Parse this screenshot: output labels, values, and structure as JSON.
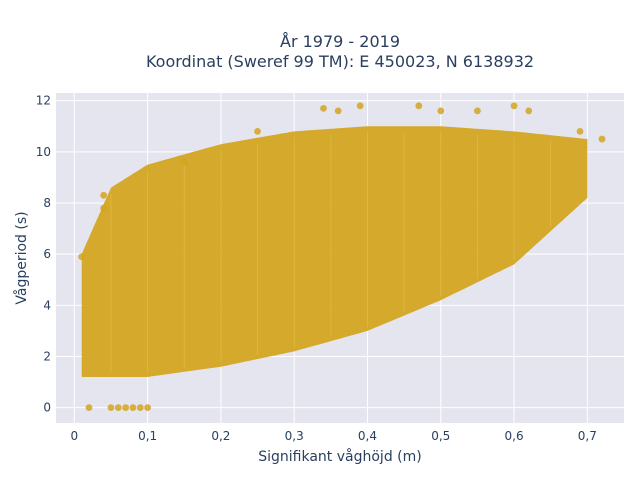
{
  "chart_data": {
    "type": "scatter",
    "title_line1": "År 1979 - 2019",
    "title_line2": "Koordinat (Sweref 99 TM): E 450023, N 6138932",
    "xlabel": "Signifikant våghöjd (m)",
    "ylabel": "Vågperiod (s)",
    "xlim": [
      -0.025,
      0.75
    ],
    "ylim": [
      -0.6,
      12.3
    ],
    "x_ticks": [
      0,
      0.1,
      0.2,
      0.3,
      0.4,
      0.5,
      0.6,
      0.7
    ],
    "x_tick_labels": [
      "0",
      "0,1",
      "0,2",
      "0,3",
      "0,4",
      "0,5",
      "0,6",
      "0,7"
    ],
    "y_ticks": [
      0,
      2,
      4,
      6,
      8,
      10,
      12
    ],
    "y_tick_labels": [
      "0",
      "2",
      "4",
      "6",
      "8",
      "10",
      "12"
    ],
    "grid": true,
    "legend": "none",
    "point_color": "#D4A520",
    "band_upper": [
      [
        0.01,
        6.0
      ],
      [
        0.05,
        8.6
      ],
      [
        0.1,
        9.5
      ],
      [
        0.2,
        10.3
      ],
      [
        0.3,
        10.8
      ],
      [
        0.4,
        11.0
      ],
      [
        0.5,
        11.0
      ],
      [
        0.6,
        10.8
      ],
      [
        0.7,
        10.5
      ]
    ],
    "band_lower": [
      [
        0.01,
        1.2
      ],
      [
        0.1,
        1.2
      ],
      [
        0.2,
        1.6
      ],
      [
        0.3,
        2.2
      ],
      [
        0.4,
        3.0
      ],
      [
        0.5,
        4.2
      ],
      [
        0.6,
        5.6
      ],
      [
        0.7,
        8.2
      ]
    ],
    "outliers": [
      {
        "x": 0.02,
        "y": 0
      },
      {
        "x": 0.05,
        "y": 0
      },
      {
        "x": 0.06,
        "y": 0
      },
      {
        "x": 0.07,
        "y": 0
      },
      {
        "x": 0.08,
        "y": 0
      },
      {
        "x": 0.09,
        "y": 0
      },
      {
        "x": 0.1,
        "y": 0
      },
      {
        "x": 0.01,
        "y": 5.9
      },
      {
        "x": 0.04,
        "y": 8.3
      },
      {
        "x": 0.04,
        "y": 7.8
      },
      {
        "x": 0.15,
        "y": 9.6
      },
      {
        "x": 0.25,
        "y": 10.8
      },
      {
        "x": 0.34,
        "y": 11.7
      },
      {
        "x": 0.36,
        "y": 11.6
      },
      {
        "x": 0.39,
        "y": 11.8
      },
      {
        "x": 0.47,
        "y": 11.8
      },
      {
        "x": 0.5,
        "y": 11.6
      },
      {
        "x": 0.55,
        "y": 11.6
      },
      {
        "x": 0.6,
        "y": 11.8
      },
      {
        "x": 0.62,
        "y": 11.6
      },
      {
        "x": 0.69,
        "y": 10.8
      },
      {
        "x": 0.72,
        "y": 10.5
      }
    ]
  }
}
